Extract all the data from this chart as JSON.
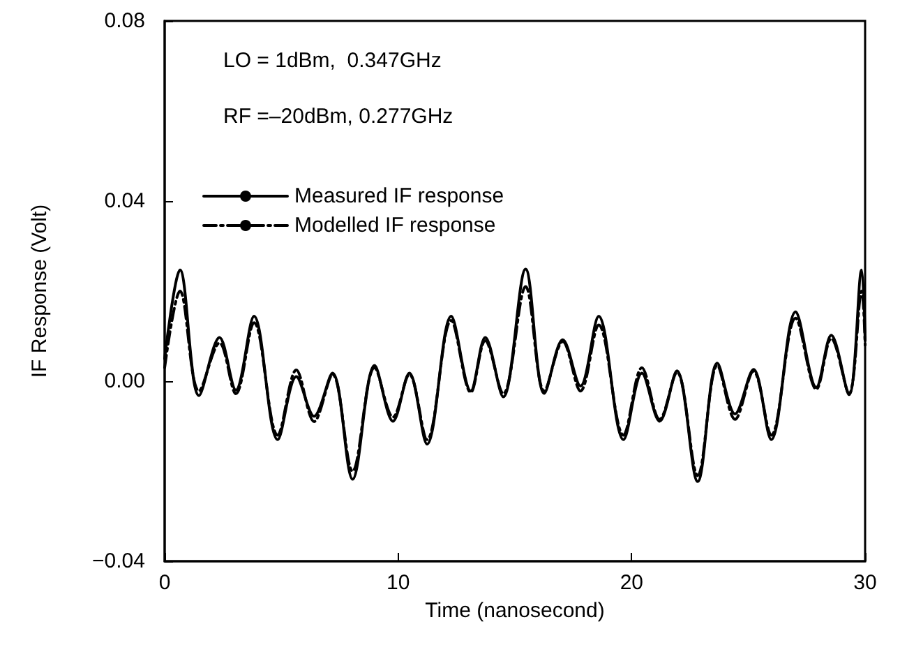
{
  "chart_data": {
    "type": "line",
    "xlabel": "Time (nanosecond)",
    "ylabel": "IF Response (Volt)",
    "annotations": [
      "LO = 1dBm,  0.347GHz",
      "RF =–20dBm, 0.277GHz"
    ],
    "xlim": [
      0,
      30
    ],
    "xticks": [
      0,
      10,
      20,
      30
    ],
    "ylim": [
      -0.04,
      0.08
    ],
    "yticks": [
      {
        "value": -0.04,
        "label": "−0.04"
      },
      {
        "value": 0,
        "label": "0.00"
      },
      {
        "value": 0.04,
        "label": "0.04"
      },
      {
        "value": 0.08,
        "label": "0.08"
      }
    ],
    "grid": false,
    "legend": "top left",
    "marker": "none",
    "series": [
      {
        "name": "Measured IF response",
        "color": "#000000",
        "line_style": "solid",
        "x": [
          0,
          0.66,
          1.47,
          2.35,
          3.05,
          3.83,
          4.84,
          5.64,
          6.4,
          7.19,
          8.05,
          8.99,
          9.78,
          10.48,
          11.24,
          12.27,
          13.11,
          13.73,
          14.5,
          15.46,
          16.26,
          17.05,
          17.81,
          18.59,
          19.65,
          20.44,
          21.2,
          21.94,
          22.83,
          23.67,
          24.43,
          25.22,
          25.98,
          27.02,
          27.91,
          28.55,
          29.31,
          29.85,
          30
        ],
        "values": [
          0.005,
          0.0247,
          -0.0032,
          0.0097,
          -0.002,
          0.0144,
          -0.013,
          0.001,
          -0.0078,
          0.0018,
          -0.0218,
          0.0035,
          -0.0089,
          0.0018,
          -0.014,
          0.0144,
          -0.0022,
          0.0097,
          -0.0035,
          0.0249,
          -0.0027,
          0.0092,
          -0.0011,
          0.0144,
          -0.013,
          0.0018,
          -0.0089,
          0.0023,
          -0.0223,
          0.004,
          -0.0073,
          0.0026,
          -0.013,
          0.0154,
          -0.0014,
          0.0102,
          -0.003,
          0.0247,
          0.009
        ]
      },
      {
        "name": "Modelled IF response",
        "color": "#000000",
        "line_style": "dashed",
        "x": [
          0,
          0.66,
          1.47,
          2.35,
          3.05,
          3.83,
          4.84,
          5.64,
          6.4,
          7.19,
          8.05,
          8.99,
          9.78,
          10.48,
          11.24,
          12.27,
          13.11,
          13.73,
          14.5,
          15.46,
          16.26,
          17.05,
          17.81,
          18.59,
          19.65,
          20.44,
          21.2,
          21.94,
          22.83,
          23.67,
          24.43,
          25.22,
          25.98,
          27.02,
          27.91,
          28.55,
          29.31,
          29.85,
          30
        ],
        "values": [
          0.003,
          0.02,
          -0.0022,
          0.0085,
          -0.0028,
          0.013,
          -0.012,
          0.0025,
          -0.009,
          0.0015,
          -0.02,
          0.003,
          -0.008,
          0.0015,
          -0.013,
          0.0135,
          -0.0025,
          0.009,
          -0.0028,
          0.021,
          -0.0022,
          0.0088,
          -0.0022,
          0.0125,
          -0.012,
          0.003,
          -0.0085,
          0.002,
          -0.021,
          0.0035,
          -0.0085,
          0.0022,
          -0.012,
          0.014,
          -0.0018,
          0.0095,
          -0.0028,
          0.02,
          0.008
        ]
      }
    ]
  }
}
